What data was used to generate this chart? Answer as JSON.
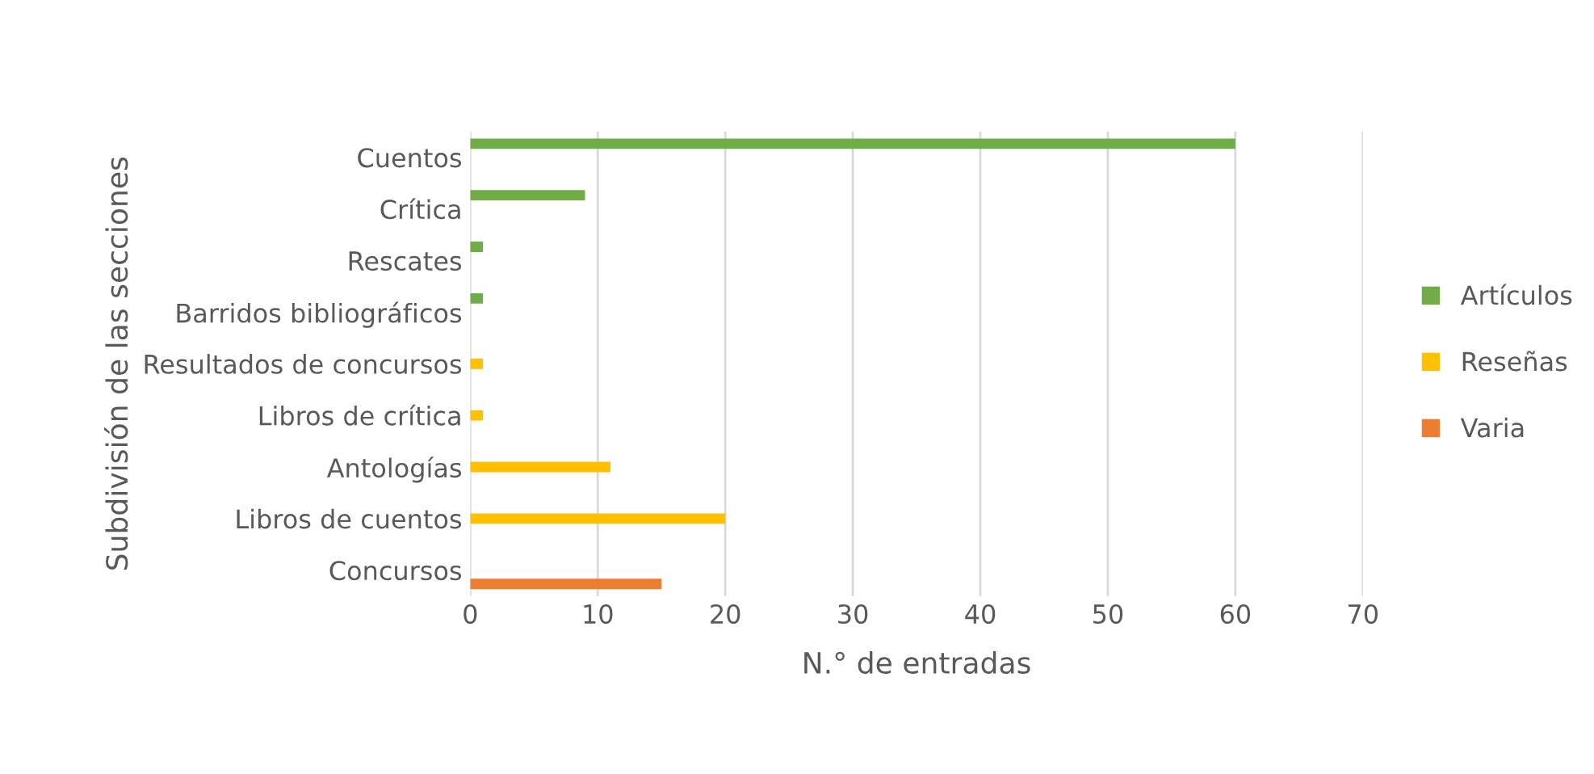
{
  "chart_data": {
    "type": "bar",
    "orientation": "horizontal",
    "xlabel": "N.° de entradas",
    "ylabel": "Subdivisión de las secciones",
    "categories": [
      "Cuentos",
      "Crítica",
      "Rescates",
      "Barridos bibliográficos",
      "Resultados de concursos",
      "Libros de crítica",
      "Antologías",
      "Libros de cuentos",
      "Concursos"
    ],
    "series": [
      {
        "name": "Artículos",
        "color": "#70ad47",
        "values": [
          60,
          9,
          1,
          1,
          null,
          null,
          null,
          null,
          null
        ]
      },
      {
        "name": "Reseñas",
        "color": "#ffc000",
        "values": [
          null,
          null,
          null,
          null,
          1,
          1,
          11,
          20,
          null
        ]
      },
      {
        "name": "Varia",
        "color": "#ed7d31",
        "values": [
          null,
          null,
          null,
          null,
          null,
          null,
          null,
          null,
          15
        ]
      }
    ],
    "xlim": [
      0,
      70
    ],
    "xticks": [
      0,
      10,
      20,
      30,
      40,
      50,
      60,
      70
    ],
    "grid": "x",
    "legend": "right"
  }
}
